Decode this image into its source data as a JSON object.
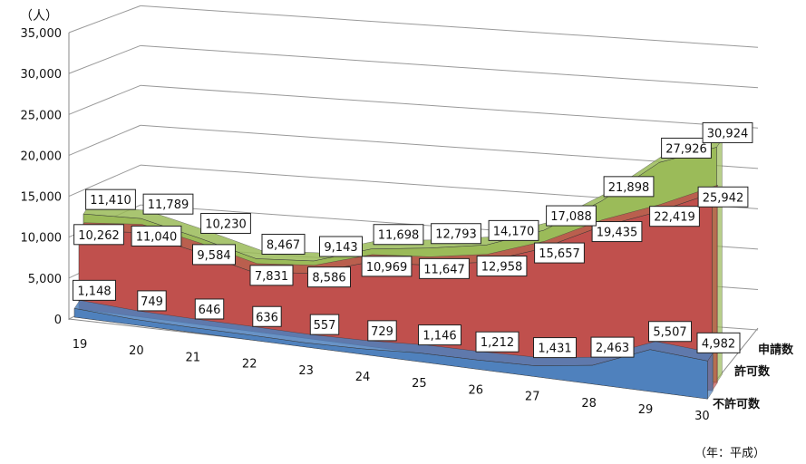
{
  "chart_data": {
    "type": "area",
    "style": "3d",
    "unit_label": "（人）",
    "x_unit_label": "（年：平成）",
    "categories": [
      "19",
      "20",
      "21",
      "22",
      "23",
      "24",
      "25",
      "26",
      "27",
      "28",
      "29",
      "30"
    ],
    "ylim": [
      0,
      35000
    ],
    "y_ticks": [
      "0",
      "5,000",
      "10,000",
      "15,000",
      "20,000",
      "25,000",
      "30,000",
      "35,000"
    ],
    "grid": true,
    "series": [
      {
        "name": "不許可数",
        "color": "#4f81bd",
        "values": [
          1148,
          749,
          646,
          636,
          557,
          729,
          1146,
          1212,
          1431,
          2463,
          5507,
          4982
        ],
        "labels": [
          "1,148",
          "749",
          "646",
          "636",
          "557",
          "729",
          "1,146",
          "1,212",
          "1,431",
          "2,463",
          "5,507",
          "4,982"
        ]
      },
      {
        "name": "許可数",
        "color": "#c0504d",
        "values": [
          10262,
          11040,
          9584,
          7831,
          8586,
          10969,
          11647,
          12958,
          15657,
          19435,
          22419,
          25942
        ],
        "labels": [
          "10,262",
          "11,040",
          "9,584",
          "7,831",
          "8,586",
          "10,969",
          "11,647",
          "12,958",
          "15,657",
          "19,435",
          "22,419",
          "25,942"
        ]
      },
      {
        "name": "申請数",
        "color": "#9bbb59",
        "values": [
          11410,
          11789,
          10230,
          8467,
          9143,
          11698,
          12793,
          14170,
          17088,
          21898,
          27926,
          30924
        ],
        "labels": [
          "11,410",
          "11,789",
          "10,230",
          "8,467",
          "9,143",
          "11,698",
          "12,793",
          "14,170",
          "17,088",
          "21,898",
          "27,926",
          "30,924"
        ]
      }
    ]
  }
}
